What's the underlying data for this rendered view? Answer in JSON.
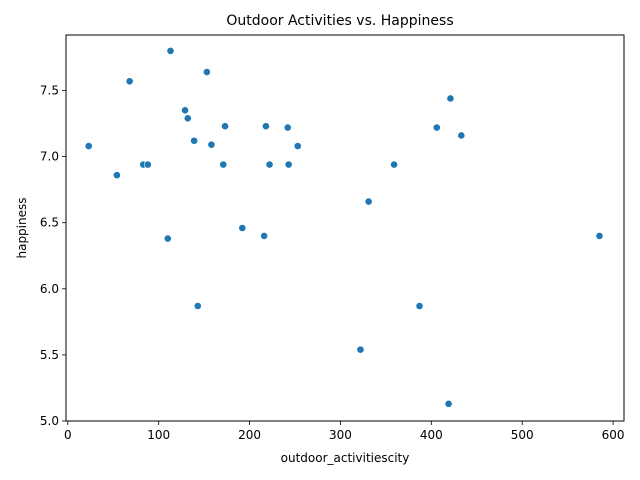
{
  "chart_data": {
    "type": "scatter",
    "title": "Outdoor Activities vs. Happiness",
    "xlabel": "outdoor_activitiescity",
    "ylabel": "happiness",
    "xlim": [
      -2,
      612
    ],
    "ylim": [
      5.0,
      7.92
    ],
    "xticks": [
      0,
      100,
      200,
      300,
      400,
      500,
      600
    ],
    "yticks": [
      5.0,
      5.5,
      6.0,
      6.5,
      7.0,
      7.5
    ],
    "xtick_labels": [
      "0",
      "100",
      "200",
      "300",
      "400",
      "500",
      "600"
    ],
    "ytick_labels": [
      "5.0",
      "5.5",
      "6.0",
      "6.5",
      "7.0",
      "7.5"
    ],
    "grid": false,
    "marker_color": "#1f77b4",
    "points": [
      {
        "x": 23,
        "y": 7.08
      },
      {
        "x": 54,
        "y": 6.86
      },
      {
        "x": 68,
        "y": 7.57
      },
      {
        "x": 83,
        "y": 6.94
      },
      {
        "x": 88,
        "y": 6.94
      },
      {
        "x": 110,
        "y": 6.38
      },
      {
        "x": 113,
        "y": 7.8
      },
      {
        "x": 129,
        "y": 7.35
      },
      {
        "x": 132,
        "y": 7.29
      },
      {
        "x": 139,
        "y": 7.12
      },
      {
        "x": 143,
        "y": 5.87
      },
      {
        "x": 153,
        "y": 7.64
      },
      {
        "x": 158,
        "y": 7.09
      },
      {
        "x": 171,
        "y": 6.94
      },
      {
        "x": 173,
        "y": 7.23
      },
      {
        "x": 192,
        "y": 6.46
      },
      {
        "x": 216,
        "y": 6.4
      },
      {
        "x": 218,
        "y": 7.23
      },
      {
        "x": 222,
        "y": 6.94
      },
      {
        "x": 242,
        "y": 7.22
      },
      {
        "x": 243,
        "y": 6.94
      },
      {
        "x": 253,
        "y": 7.08
      },
      {
        "x": 322,
        "y": 5.54
      },
      {
        "x": 331,
        "y": 6.66
      },
      {
        "x": 359,
        "y": 6.94
      },
      {
        "x": 387,
        "y": 5.87
      },
      {
        "x": 406,
        "y": 7.22
      },
      {
        "x": 419,
        "y": 5.13
      },
      {
        "x": 421,
        "y": 7.44
      },
      {
        "x": 433,
        "y": 7.16
      },
      {
        "x": 585,
        "y": 6.4
      }
    ]
  }
}
